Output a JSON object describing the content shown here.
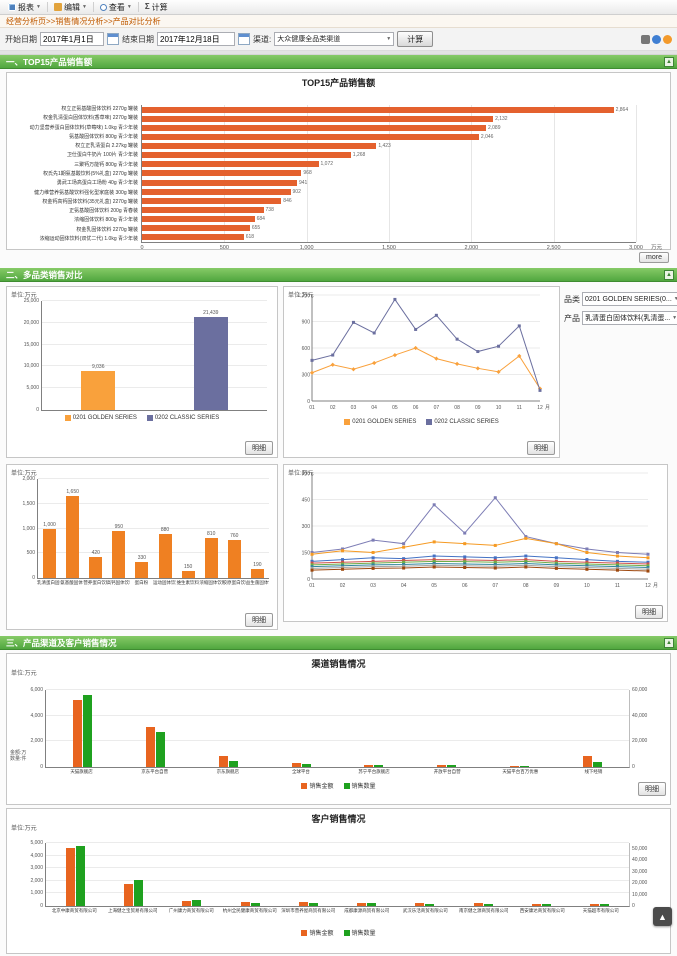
{
  "toolbar": {
    "report": "报表",
    "edit": "编辑",
    "view": "查看",
    "calc": "计算"
  },
  "breadcrumb": "经营分析页>>销售情况分析>>产品对比分析",
  "filters": {
    "start_label": "开始日期",
    "start_value": "2017年1月1日",
    "end_label": "结束日期",
    "end_value": "2017年12月18日",
    "channel_label": "渠道:",
    "channel_value": "大众健康全品类渠道",
    "calc_button": "计算"
  },
  "sections": {
    "s1": {
      "title": "一、TOP15产品销售额",
      "more": "more"
    },
    "s2": {
      "title": "二、多品类销售对比",
      "detail": "明细",
      "category_label": "品类",
      "category_value": "0201 GOLDEN SERIES(0...",
      "product_label": "产品",
      "product_value": "乳清蛋白固体饮料(乳清蛋..."
    },
    "s3": {
      "title": "三、产品渠道及客户销售情况",
      "detail": "明细"
    }
  },
  "chart_data": [
    {
      "id": "top15",
      "type": "bar",
      "orientation": "horizontal",
      "title": "TOP15产品销售额",
      "xlabel": "万元",
      "color": "#e4612e",
      "xticks": [
        0,
        500,
        1000,
        1500,
        2000,
        2500,
        3000
      ],
      "categories": [
        "权立正氨基酸固体饮料 2270g 罐装",
        "权金乳清蛋白固体饮料(香草味) 2270g 罐装",
        "动力坚营养蛋白固体饮料(草莓味) 1.0kg 青少年装",
        "氨基酸固体饮料 800g 青少年装",
        "权立正乳清蛋白 2.27kg 罐装",
        "卫仕蛋白牛奶片 100片 青少年装",
        "三聚钙万能钙 800g 青少年装",
        "权氏先1期氨基酸饮料(5%礼盒) 2270g 罐装",
        "勇武工场高蛋白工场粉 40g 青少年装",
        "健力维营养氨基酸饮料强化型家庭装 300g 罐装",
        "权金钙高钙固体饮料(35元礼盒) 2270g 罐装",
        "正氨基酸固体饮料 200g 青春装",
        "浓缩固体饮料 800g 青少年装",
        "权金乳固体饮料 2270g 罐装",
        "浓缩运动固体饮料(双优二代) 1.0kg 青少年装"
      ],
      "values": [
        2864,
        2132,
        2089,
        2046,
        1423,
        1268,
        1072,
        968,
        941,
        902,
        846,
        738,
        684,
        655,
        618
      ]
    },
    {
      "id": "series_total",
      "type": "bar",
      "unit": "单位:万元",
      "categories": [
        "0201 GOLDEN SERIES",
        "0202 CLASSIC SERIES"
      ],
      "values": [
        9036,
        21439
      ],
      "colors": [
        "#f9a13c",
        "#6b6f9f"
      ],
      "ymax": 25000,
      "yticks": [
        0,
        5000,
        10000,
        15000,
        20000,
        25000
      ],
      "legend": [
        {
          "label": "0201 GOLDEN SERIES",
          "color": "#f9a13c"
        },
        {
          "label": "0202 CLASSIC SERIES",
          "color": "#6b6f9f"
        }
      ]
    },
    {
      "id": "series_month",
      "type": "line",
      "unit": "单位:万元",
      "xlabel": "月",
      "x": [
        "01",
        "02",
        "03",
        "04",
        "05",
        "06",
        "07",
        "08",
        "09",
        "10",
        "11",
        "12"
      ],
      "ymax": 1200,
      "yticks": [
        0,
        300,
        600,
        900,
        1200
      ],
      "series": [
        {
          "name": "0201 GOLDEN SERIES",
          "color": "#f9a13c",
          "marker": "diamond",
          "values": [
            320,
            410,
            360,
            430,
            520,
            600,
            480,
            420,
            370,
            330,
            510,
            140
          ]
        },
        {
          "name": "0202 CLASSIC SERIES",
          "color": "#6b6f9f",
          "marker": "square",
          "values": [
            460,
            520,
            890,
            770,
            1150,
            810,
            970,
            700,
            560,
            620,
            850,
            120
          ]
        }
      ]
    },
    {
      "id": "product_total",
      "type": "bar",
      "unit": "单位:万元",
      "color": "#ef8022",
      "ymax": 2000,
      "yticks": [
        0,
        500,
        1000,
        1500,
        2000
      ],
      "categories": [
        "乳清蛋白固体饮料",
        "氨基酸固体饮料",
        "营养蛋白饮料",
        "高钙固体饮料",
        "蛋白粉",
        "运动固体饮料",
        "维生素饮料",
        "浓缩固体饮料",
        "胶原蛋白饮料",
        "益生菌固体饮料"
      ],
      "values": [
        1000,
        1650,
        420,
        950,
        330,
        880,
        150,
        810,
        760,
        190
      ]
    },
    {
      "id": "product_month",
      "type": "line",
      "unit": "单位:万元",
      "xlabel": "月",
      "x": [
        "01",
        "02",
        "03",
        "04",
        "05",
        "06",
        "07",
        "08",
        "09",
        "10",
        "11",
        "12"
      ],
      "ymax": 600,
      "yticks": [
        0,
        150,
        300,
        450,
        600
      ],
      "series": [
        {
          "name": "乳清蛋白固体饮料",
          "color": "#7d7db5",
          "marker": "square",
          "values": [
            150,
            170,
            220,
            200,
            420,
            260,
            460,
            240,
            200,
            170,
            150,
            140
          ]
        },
        {
          "name": "氨基酸固体饮料",
          "color": "#f59a23",
          "marker": "square",
          "values": [
            140,
            160,
            150,
            180,
            210,
            200,
            190,
            230,
            200,
            150,
            130,
            120
          ]
        },
        {
          "name": "营养蛋白饮料",
          "color": "#4472c4",
          "marker": "square",
          "values": [
            100,
            110,
            120,
            115,
            130,
            125,
            120,
            130,
            120,
            110,
            100,
            95
          ]
        },
        {
          "name": "高钙固体饮料",
          "color": "#d0504b",
          "marker": "square",
          "values": [
            90,
            95,
            100,
            105,
            110,
            108,
            105,
            110,
            100,
            95,
            90,
            85
          ]
        },
        {
          "name": "蛋白粉",
          "color": "#70ad47",
          "marker": "square",
          "values": [
            80,
            85,
            90,
            95,
            100,
            98,
            95,
            100,
            90,
            85,
            80,
            75
          ]
        },
        {
          "name": "运动固体饮料",
          "color": "#31859c",
          "marker": "square",
          "values": [
            70,
            75,
            80,
            82,
            88,
            85,
            82,
            88,
            80,
            75,
            70,
            65
          ]
        },
        {
          "name": "维生素饮料",
          "color": "#a5a5a5",
          "marker": "square",
          "values": [
            60,
            65,
            70,
            72,
            78,
            75,
            72,
            78,
            70,
            65,
            60,
            55
          ]
        },
        {
          "name": "浓缩固体饮料",
          "color": "#9e480e",
          "marker": "square",
          "values": [
            50,
            55,
            60,
            62,
            68,
            65,
            62,
            68,
            60,
            55,
            50,
            45
          ]
        }
      ]
    },
    {
      "id": "channel",
      "type": "bar-grouped",
      "title": "渠道销售情况",
      "unit": "单位:万元",
      "axis_notes": [
        "金额:万",
        "数量:件"
      ],
      "categories": [
        "天猫旗舰店",
        "京东平台自营",
        "京东旗舰店",
        "全球平台",
        "苏宁平台旗舰店",
        "开放平台自营",
        "天猫平台百万优惠",
        "线下经销"
      ],
      "left_max": 6000,
      "right_max": 60000,
      "left_ticks": [
        6000,
        4000,
        2000,
        0
      ],
      "right_ticks": [
        60000,
        40000,
        20000,
        0
      ],
      "series": [
        {
          "name": "销售金额",
          "color": "#e8641f",
          "axis": "left",
          "values": [
            5230,
            3120,
            860,
            320,
            190,
            130,
            90,
            840
          ]
        },
        {
          "name": "销售数量",
          "color": "#1fa11f",
          "axis": "right",
          "values": [
            56000,
            27000,
            4800,
            2400,
            1500,
            1200,
            900,
            4200
          ]
        }
      ]
    },
    {
      "id": "customer",
      "type": "bar-grouped",
      "title": "客户销售情况",
      "unit": "单位:万元",
      "categories": [
        "北京中康商贸有限公司",
        "上海健之宝贸易有限公司",
        "广州康力商贸有限公司",
        "杭州全民健康商贸有限公司",
        "深圳市营养屋商贸有限公司",
        "成都康源商贸有限公司",
        "武汉乐活商贸有限公司",
        "南京健之源商贸有限公司",
        "西安康达商贸有限公司",
        "天猫超市有限公司"
      ],
      "left_max": 5000,
      "right_max": 55000,
      "left_ticks": [
        5000,
        4000,
        3000,
        2000,
        1000,
        0
      ],
      "right_ticks": [
        50000,
        40000,
        30000,
        20000,
        10000,
        0
      ],
      "series": [
        {
          "name": "销售金额",
          "color": "#e8641f",
          "axis": "left",
          "values": [
            4620,
            1780,
            430,
            310,
            280,
            250,
            230,
            210,
            190,
            170
          ]
        },
        {
          "name": "销售数量",
          "color": "#1fa11f",
          "axis": "right",
          "values": [
            52000,
            23000,
            5100,
            2900,
            2600,
            2300,
            2100,
            1900,
            1700,
            1500
          ]
        }
      ]
    }
  ]
}
